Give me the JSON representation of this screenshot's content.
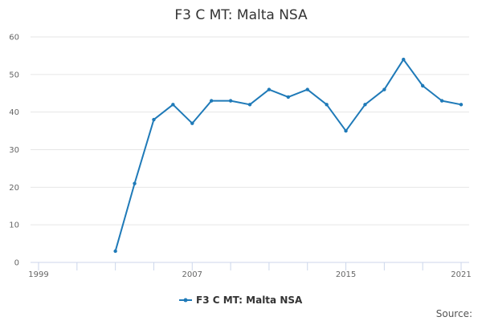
{
  "chart_data": {
    "type": "line",
    "title": "F3 C MT: Malta NSA",
    "xlabel": "",
    "ylabel": "",
    "xlim": [
      1999,
      2021
    ],
    "ylim": [
      0,
      60
    ],
    "y_ticks": [
      0,
      10,
      20,
      30,
      40,
      50,
      60
    ],
    "x_tick_labels": [
      "1999",
      "2007",
      "2015",
      "2021"
    ],
    "x_tick_label_years": [
      1999,
      2007,
      2015,
      2021
    ],
    "grid": true,
    "legend": "bottom-center",
    "series": [
      {
        "name": "F3 C MT: Malta NSA",
        "color": "#1f7ab8",
        "x": [
          2003,
          2004,
          2005,
          2006,
          2007,
          2008,
          2009,
          2010,
          2011,
          2012,
          2013,
          2014,
          2015,
          2016,
          2017,
          2018,
          2019,
          2020,
          2021
        ],
        "values": [
          3,
          21,
          38,
          42,
          37,
          43,
          43,
          42,
          46,
          44,
          46,
          42,
          35,
          42,
          46,
          54,
          47,
          43,
          42
        ]
      }
    ]
  },
  "source_label": "Source:"
}
